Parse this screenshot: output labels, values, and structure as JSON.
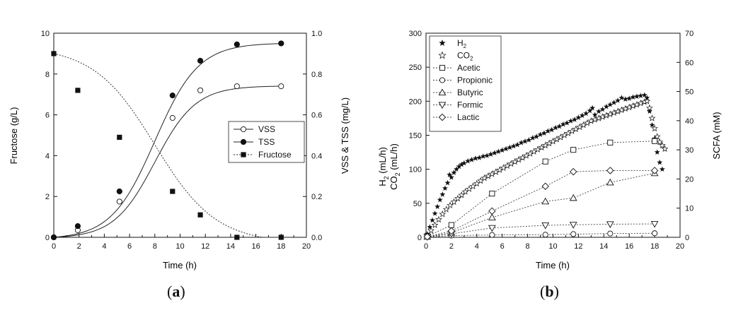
{
  "panels": {
    "a": {
      "caption": "a"
    },
    "b": {
      "caption": "b"
    }
  },
  "chart_data": [
    {
      "panel": "a",
      "type": "scatter",
      "xlabel": "Time (h)",
      "ylabel": "Fructose (g/L)",
      "y2label": "VSS & TSS (mg/L)",
      "xlim": [
        0,
        20
      ],
      "ylim": [
        0,
        10
      ],
      "y2lim": [
        0,
        1.0
      ],
      "xticks": [
        0,
        2,
        4,
        6,
        8,
        10,
        12,
        14,
        16,
        18,
        20
      ],
      "yticks": [
        0,
        2,
        4,
        6,
        8,
        10
      ],
      "y2ticks": [
        "0.0",
        "0.2",
        "0.4",
        "0.6",
        "0.8",
        "1.0"
      ],
      "legend_position": "center-right",
      "grid": false,
      "series": [
        {
          "name": "VSS",
          "axis": "right",
          "marker": "circle-open",
          "line": "solid",
          "x": [
            0,
            1.9,
            5.2,
            9.4,
            11.6,
            14.5,
            18.0
          ],
          "y": [
            0.0,
            0.035,
            0.175,
            0.585,
            0.72,
            0.74,
            0.74
          ]
        },
        {
          "name": "TSS",
          "axis": "right",
          "marker": "circle-filled",
          "line": "solid",
          "x": [
            0,
            1.9,
            5.2,
            9.4,
            11.6,
            14.5,
            18.0
          ],
          "y": [
            0.0,
            0.055,
            0.225,
            0.695,
            0.865,
            0.945,
            0.95
          ]
        },
        {
          "name": "Fructose",
          "axis": "left",
          "marker": "square-filled",
          "line": "dotted",
          "x": [
            0,
            1.9,
            5.2,
            9.4,
            11.6,
            14.5,
            18.0
          ],
          "y": [
            9.0,
            7.2,
            4.9,
            2.25,
            1.1,
            0.0,
            0.0
          ]
        }
      ]
    },
    {
      "panel": "b",
      "type": "scatter",
      "xlabel": "Time (h)",
      "ylabel_top": "H",
      "ylabel_top_sub": "2",
      "ylabel_top_unit": " (mL/h)",
      "ylabel_bottom": "CO",
      "ylabel_bottom_sub": "2",
      "ylabel_bottom_unit": " (mL/h)",
      "y2label": "SCFA (mM)",
      "xlim": [
        0,
        20
      ],
      "ylim": [
        0,
        300
      ],
      "y2lim": [
        0,
        70
      ],
      "xticks": [
        0,
        2,
        4,
        6,
        8,
        10,
        12,
        14,
        16,
        18,
        20
      ],
      "yticks": [
        0,
        50,
        100,
        150,
        200,
        250,
        300
      ],
      "y2ticks": [
        0,
        10,
        20,
        30,
        40,
        50,
        60,
        70
      ],
      "legend_position": "top-left",
      "grid": false,
      "series": [
        {
          "name": "H",
          "name_sub": "2",
          "axis": "left",
          "marker": "star-filled",
          "x": [
            0.1,
            0.3,
            0.5,
            0.7,
            0.9,
            1.1,
            1.3,
            1.5,
            1.7,
            1.85,
            2.0,
            2.2,
            2.4,
            2.6,
            2.8,
            3.0,
            3.3,
            3.6,
            3.9,
            4.2,
            4.5,
            4.8,
            5.1,
            5.4,
            5.7,
            6.0,
            6.3,
            6.6,
            6.9,
            7.2,
            7.5,
            7.8,
            8.1,
            8.4,
            8.7,
            9.0,
            9.3,
            9.6,
            9.9,
            10.2,
            10.5,
            10.8,
            11.1,
            11.4,
            11.7,
            12.0,
            12.3,
            12.6,
            12.9,
            13.1,
            13.3,
            13.6,
            13.9,
            14.2,
            14.5,
            14.8,
            15.1,
            15.4,
            15.7,
            16.0,
            16.3,
            16.6,
            16.9,
            17.2,
            17.4,
            17.6,
            17.8,
            18.0,
            18.2,
            18.4,
            18.6
          ],
          "y": [
            5,
            15,
            25,
            35,
            45,
            55,
            63,
            72,
            80,
            92,
            88,
            95,
            100,
            104,
            107,
            109,
            112,
            114,
            116,
            117,
            119,
            120,
            122,
            124,
            126,
            128,
            130,
            132,
            134,
            136,
            139,
            141,
            143,
            146,
            148,
            151,
            153,
            156,
            158,
            161,
            163,
            166,
            168,
            171,
            173,
            176,
            179,
            182,
            186,
            190,
            180,
            185,
            188,
            192,
            195,
            198,
            201,
            205,
            203,
            204,
            206,
            207,
            208,
            209,
            205,
            185,
            165,
            145,
            125,
            110,
            100
          ]
        },
        {
          "name": "CO",
          "name_sub": "2",
          "axis": "left",
          "marker": "star-open",
          "x": [
            0.1,
            0.4,
            0.7,
            1.0,
            1.3,
            1.6,
            1.9,
            2.2,
            2.5,
            2.8,
            3.1,
            3.4,
            3.7,
            4.0,
            4.3,
            4.6,
            4.9,
            5.2,
            5.5,
            5.8,
            6.1,
            6.4,
            6.7,
            7.0,
            7.3,
            7.6,
            7.9,
            8.2,
            8.5,
            8.8,
            9.1,
            9.4,
            9.7,
            10.0,
            10.3,
            10.6,
            10.9,
            11.2,
            11.5,
            11.8,
            12.1,
            12.4,
            12.7,
            13.0,
            13.3,
            13.6,
            13.9,
            14.2,
            14.5,
            14.8,
            15.1,
            15.4,
            15.7,
            16.0,
            16.3,
            16.6,
            16.9,
            17.2,
            17.4,
            17.6,
            17.8,
            18.0,
            18.2,
            18.4,
            18.6,
            18.8
          ],
          "y": [
            3,
            10,
            18,
            26,
            34,
            41,
            47,
            52,
            57,
            62,
            67,
            71,
            75,
            79,
            83,
            87,
            90,
            93,
            96,
            99,
            102,
            105,
            108,
            111,
            114,
            117,
            120,
            123,
            126,
            129,
            132,
            135,
            138,
            141,
            144,
            147,
            150,
            153,
            156,
            159,
            162,
            165,
            168,
            171,
            173,
            175,
            177,
            179,
            181,
            183,
            185,
            187,
            189,
            191,
            193,
            195,
            197,
            199,
            200,
            190,
            175,
            160,
            148,
            140,
            135,
            130
          ]
        },
        {
          "name": "Acetic",
          "axis": "right",
          "marker": "square-open",
          "line": "dotted",
          "x": [
            0.1,
            2.0,
            5.2,
            9.4,
            11.6,
            14.5,
            18.0
          ],
          "y": [
            0.3,
            4.2,
            15.0,
            26.0,
            30.0,
            32.5,
            33.0
          ]
        },
        {
          "name": "Propionic",
          "axis": "right",
          "marker": "circle-open",
          "line": "dotted",
          "x": [
            0.1,
            2.0,
            5.2,
            9.4,
            11.6,
            14.5,
            18.0
          ],
          "y": [
            0.1,
            0.6,
            0.8,
            0.9,
            1.1,
            1.3,
            1.4
          ]
        },
        {
          "name": "Butyric",
          "axis": "right",
          "marker": "triangle-up-open",
          "line": "dotted",
          "x": [
            0.1,
            2.0,
            5.2,
            9.4,
            11.6,
            14.5,
            18.0
          ],
          "y": [
            0.2,
            1.6,
            6.8,
            12.3,
            13.5,
            18.8,
            22.0
          ]
        },
        {
          "name": "Formic",
          "axis": "right",
          "marker": "triangle-down-open",
          "line": "dotted",
          "x": [
            0.1,
            2.0,
            5.2,
            9.4,
            11.6,
            14.5,
            18.0
          ],
          "y": [
            0.2,
            1.2,
            3.2,
            4.1,
            4.3,
            4.5,
            4.6
          ]
        },
        {
          "name": "Lactic",
          "axis": "right",
          "marker": "diamond-open",
          "line": "dotted",
          "x": [
            0.1,
            2.0,
            5.2,
            9.4,
            11.6,
            14.5,
            18.0
          ],
          "y": [
            0.2,
            2.2,
            9.0,
            17.5,
            22.5,
            22.9,
            22.9
          ]
        }
      ]
    }
  ]
}
